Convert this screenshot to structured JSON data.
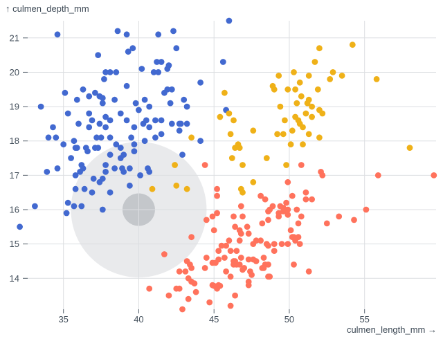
{
  "chart_data": {
    "type": "scatter",
    "title": "",
    "xlabel": "culmen_length_mm →",
    "ylabel": "↑ culmen_depth_mm",
    "x": {
      "ticks": [
        35,
        40,
        45,
        50,
        55
      ],
      "domain": [
        32.1,
        59.6
      ],
      "grid": true
    },
    "y": {
      "ticks": [
        14,
        15,
        16,
        17,
        18,
        19,
        20,
        21
      ],
      "domain": [
        13.1,
        21.5
      ],
      "grid": true
    },
    "legend_position": "none",
    "annotation": {
      "name": "pointer-halo",
      "center_x": 40,
      "center_y": 16,
      "outer_radius_px": 98,
      "inner_radius_px": 23.5,
      "outer_color": "#e9eaec",
      "inner_color": "#c4c7cb"
    },
    "series": [
      {
        "name": "blue",
        "color": "#4269d0",
        "points": [
          [
            34.6,
            21.1
          ],
          [
            38.6,
            21.2
          ],
          [
            39.2,
            21.1
          ],
          [
            46,
            21.5
          ],
          [
            42.3,
            21.2
          ],
          [
            39.3,
            20.6
          ],
          [
            39.6,
            20.7
          ],
          [
            37.3,
            20.5
          ],
          [
            41.3,
            21.1
          ],
          [
            42.5,
            20.7
          ],
          [
            41.2,
            20.3
          ],
          [
            41.5,
            20.3
          ],
          [
            42,
            20.2
          ],
          [
            41.9,
            20.1
          ],
          [
            45.6,
            20.3
          ],
          [
            40.2,
            20.1
          ],
          [
            41,
            20
          ],
          [
            41.3,
            20
          ],
          [
            37.8,
            20
          ],
          [
            38.1,
            20
          ],
          [
            38.5,
            20
          ],
          [
            37.7,
            19.8
          ],
          [
            39.2,
            19.6
          ],
          [
            44.1,
            19.7
          ],
          [
            36.3,
            19.5
          ],
          [
            35.1,
            19.4
          ],
          [
            35.9,
            19.2
          ],
          [
            36.7,
            19.3
          ],
          [
            37.1,
            19.4
          ],
          [
            37.4,
            19.3
          ],
          [
            37.6,
            19.25
          ],
          [
            37.6,
            19.1
          ],
          [
            38.4,
            19.2
          ],
          [
            39.8,
            19.1
          ],
          [
            40.4,
            19.2
          ],
          [
            33.5,
            19
          ],
          [
            40.7,
            19
          ],
          [
            41.9,
            19.5
          ],
          [
            42.2,
            19.5
          ],
          [
            41.7,
            19.4
          ],
          [
            43,
            19.2
          ],
          [
            42.1,
            19.1
          ],
          [
            43.2,
            19
          ],
          [
            35.3,
            18.8
          ],
          [
            36.7,
            18.8
          ],
          [
            37.8,
            18.7
          ],
          [
            38.8,
            18.8
          ],
          [
            39.2,
            18.6
          ],
          [
            40,
            18.9
          ],
          [
            38.1,
            18.6
          ],
          [
            36,
            18.5
          ],
          [
            36.7,
            18.4
          ],
          [
            36.9,
            18.6
          ],
          [
            37.4,
            18.5
          ],
          [
            37.8,
            18.4
          ],
          [
            39.7,
            18.4
          ],
          [
            40.3,
            18.5
          ],
          [
            40.5,
            18.6
          ],
          [
            40.7,
            18.4
          ],
          [
            41.1,
            18.6
          ],
          [
            34.3,
            18.4
          ],
          [
            34,
            18.1
          ],
          [
            34.5,
            18.1
          ],
          [
            37.2,
            18.1
          ],
          [
            37.5,
            18.1
          ],
          [
            38.1,
            18.1
          ],
          [
            39.5,
            18.1
          ],
          [
            40.4,
            18
          ],
          [
            41.1,
            18.1
          ],
          [
            35,
            17.9
          ],
          [
            35.7,
            18
          ],
          [
            35.8,
            17.8
          ],
          [
            35.9,
            17.8
          ],
          [
            36.5,
            17.8
          ],
          [
            36.6,
            17.7
          ],
          [
            37.1,
            17.8
          ],
          [
            37.3,
            17.8
          ],
          [
            39.7,
            17.9
          ],
          [
            39.7,
            17.7
          ],
          [
            38.5,
            17.9
          ],
          [
            38.8,
            17.8
          ],
          [
            39,
            17.6
          ],
          [
            38.1,
            17.6
          ],
          [
            38.8,
            17.5
          ],
          [
            41.5,
            18.6
          ],
          [
            41.5,
            18.2
          ],
          [
            42.2,
            18.5
          ],
          [
            42.7,
            18.5
          ],
          [
            42.8,
            18.5
          ],
          [
            43.2,
            18.5
          ],
          [
            42.7,
            18.3
          ],
          [
            44.1,
            18
          ],
          [
            42.9,
            17.6
          ],
          [
            45.8,
            18.9
          ],
          [
            35.5,
            17.5
          ],
          [
            36.2,
            17.3
          ],
          [
            36.3,
            17.2
          ],
          [
            36.1,
            17.1
          ],
          [
            35.8,
            17
          ],
          [
            34.6,
            17.2
          ],
          [
            33.9,
            17.1
          ],
          [
            37.8,
            17.3
          ],
          [
            37.8,
            17.1
          ],
          [
            38.4,
            17.2
          ],
          [
            38.9,
            17.2
          ],
          [
            39,
            17.1
          ],
          [
            39.4,
            17.2
          ],
          [
            40.1,
            17
          ],
          [
            40.6,
            17.2
          ],
          [
            40.7,
            17.1
          ],
          [
            37,
            16.9
          ],
          [
            37.4,
            16.8
          ],
          [
            37.6,
            16.9
          ],
          [
            35.8,
            16.6
          ],
          [
            36.4,
            16.6
          ],
          [
            36.9,
            16.5
          ],
          [
            38.1,
            16.5
          ],
          [
            39.4,
            16.7
          ],
          [
            33.1,
            16.1
          ],
          [
            35.3,
            16.2
          ],
          [
            35.7,
            16.1
          ],
          [
            36.2,
            16.1
          ],
          [
            37.6,
            16
          ],
          [
            35.2,
            15.9
          ],
          [
            32.1,
            15.5
          ]
        ]
      },
      {
        "name": "orange",
        "color": "#efb118",
        "points": [
          [
            50.3,
            20
          ],
          [
            49.3,
            19.9
          ],
          [
            48.9,
            19.6
          ],
          [
            49,
            19.5
          ],
          [
            49.9,
            19.5
          ],
          [
            50.4,
            19.5
          ],
          [
            45.7,
            19.4
          ],
          [
            49.4,
            19
          ],
          [
            50.5,
            19.1
          ],
          [
            54.2,
            20.8
          ],
          [
            52,
            20.7
          ],
          [
            51.7,
            20.3
          ],
          [
            52.9,
            20
          ],
          [
            51.3,
            19.9
          ],
          [
            52.7,
            19.8
          ],
          [
            53.5,
            19.9
          ],
          [
            55.8,
            19.8
          ],
          [
            50.7,
            19.7
          ],
          [
            51.9,
            19.5
          ],
          [
            50.8,
            19.3
          ],
          [
            51.3,
            19.2
          ],
          [
            51.2,
            19.1
          ],
          [
            51.5,
            19
          ],
          [
            52,
            18.9
          ],
          [
            43.5,
            18.1
          ],
          [
            42.4,
            17.3
          ],
          [
            42.5,
            16.7
          ],
          [
            43.2,
            16.6
          ],
          [
            46,
            18.8
          ],
          [
            45.4,
            18.7
          ],
          [
            46.3,
            18.6
          ],
          [
            46.1,
            18.2
          ],
          [
            46.2,
            17.5
          ],
          [
            46.6,
            17.9
          ],
          [
            46.4,
            17.8
          ],
          [
            46.7,
            17.8
          ],
          [
            46.9,
            17.3
          ],
          [
            47.6,
            18.3
          ],
          [
            47.6,
            16.8
          ],
          [
            46.8,
            16.6
          ],
          [
            46.9,
            16.5
          ],
          [
            48.5,
            17.5
          ],
          [
            49.7,
            18.6
          ],
          [
            49.2,
            18.2
          ],
          [
            49.6,
            18.2
          ],
          [
            50.2,
            18.3
          ],
          [
            50.4,
            18.7
          ],
          [
            50.1,
            17.9
          ],
          [
            49.8,
            17.3
          ],
          [
            40.9,
            16.6
          ],
          [
            51.1,
            18.8
          ],
          [
            51.5,
            18.7
          ],
          [
            52.2,
            18.8
          ],
          [
            50.6,
            18.6
          ],
          [
            50.7,
            18.5
          ],
          [
            50.9,
            18.4
          ],
          [
            51.3,
            18.2
          ],
          [
            52,
            18.1
          ],
          [
            50.9,
            17.9
          ],
          [
            58,
            17.8
          ]
        ]
      },
      {
        "name": "red",
        "color": "#ff725c",
        "points": [
          [
            44.4,
            17.3
          ],
          [
            48.1,
            16.4
          ],
          [
            48.4,
            16.3
          ],
          [
            49.9,
            16.8
          ],
          [
            49.4,
            16.1
          ],
          [
            49.6,
            16.05
          ],
          [
            49.8,
            16.2
          ],
          [
            49.9,
            16
          ],
          [
            49.6,
            15.95
          ],
          [
            48.9,
            16.1
          ],
          [
            48.7,
            16
          ],
          [
            48.6,
            15.95
          ],
          [
            49.3,
            15.9
          ],
          [
            49.9,
            15.85
          ],
          [
            46.8,
            16.1
          ],
          [
            45.2,
            16.6
          ],
          [
            45.2,
            16.4
          ],
          [
            45.2,
            15.9
          ],
          [
            50.2,
            16.4
          ],
          [
            50.8,
            17.3
          ],
          [
            52.1,
            17.1
          ],
          [
            52.2,
            17
          ],
          [
            55.9,
            17
          ],
          [
            59.6,
            17
          ],
          [
            51.1,
            16.5
          ],
          [
            51.1,
            16.3
          ],
          [
            51.5,
            16.3
          ],
          [
            55.1,
            16
          ],
          [
            50.5,
            16
          ],
          [
            44.5,
            15.7
          ],
          [
            44.9,
            15.8
          ],
          [
            46.3,
            15.8
          ],
          [
            46.9,
            15.8
          ],
          [
            48.2,
            15.6
          ],
          [
            48.6,
            15.7
          ],
          [
            49.3,
            15.8
          ],
          [
            46.4,
            15.5
          ],
          [
            47.2,
            15.5
          ],
          [
            45,
            15.4
          ],
          [
            46.7,
            15.4
          ],
          [
            46.8,
            15.3
          ],
          [
            47.3,
            15.3
          ],
          [
            50.1,
            15.4
          ],
          [
            50.2,
            15.2
          ],
          [
            43.5,
            15.2
          ],
          [
            46,
            15.1
          ],
          [
            46.7,
            15.1
          ],
          [
            47.6,
            15
          ],
          [
            47.8,
            15.1
          ],
          [
            48.1,
            15.1
          ],
          [
            48.5,
            15
          ],
          [
            48.6,
            14.95
          ],
          [
            49,
            15
          ],
          [
            49.5,
            15
          ],
          [
            49.9,
            15
          ],
          [
            50.3,
            15.2
          ],
          [
            50.4,
            15.1
          ],
          [
            45.5,
            14.95
          ],
          [
            45.8,
            14.95
          ],
          [
            46.1,
            14.8
          ],
          [
            46.5,
            14.8
          ],
          [
            45.3,
            14.8
          ],
          [
            49,
            14.8
          ],
          [
            41.7,
            14.7
          ],
          [
            44.5,
            14.6
          ],
          [
            45.1,
            14.45
          ],
          [
            44.9,
            14.45
          ],
          [
            45.3,
            14.55
          ],
          [
            45.7,
            14.6
          ],
          [
            46.8,
            14.6
          ],
          [
            47.3,
            14.55
          ],
          [
            47.6,
            14.55
          ],
          [
            47.8,
            14.5
          ],
          [
            48.3,
            14.6
          ],
          [
            46.3,
            14.5
          ],
          [
            46.4,
            14.5
          ],
          [
            46.3,
            14.4
          ],
          [
            46.5,
            14.4
          ],
          [
            46.7,
            14.4
          ],
          [
            48.4,
            14.4
          ],
          [
            48.6,
            14.4
          ],
          [
            43.2,
            14.5
          ],
          [
            43.4,
            14.4
          ],
          [
            42.7,
            14.2
          ],
          [
            43.1,
            14.2
          ],
          [
            43.5,
            14.3
          ],
          [
            44.4,
            14.3
          ],
          [
            45.8,
            14.2
          ],
          [
            46.1,
            14.05
          ],
          [
            46.9,
            14.25
          ],
          [
            47,
            14.3
          ],
          [
            47.4,
            14.2
          ],
          [
            47.5,
            14.1
          ],
          [
            48.2,
            14.3
          ],
          [
            48.3,
            14.3
          ],
          [
            48.6,
            14.05
          ],
          [
            48.7,
            14.05
          ],
          [
            50.3,
            14.4
          ],
          [
            43.3,
            14
          ],
          [
            43.5,
            13.9
          ],
          [
            43.7,
            13.85
          ],
          [
            42.5,
            13.7
          ],
          [
            42.7,
            13.7
          ],
          [
            43.8,
            13.6
          ],
          [
            44.9,
            13.8
          ],
          [
            45,
            13.78
          ],
          [
            45.3,
            13.8
          ],
          [
            45.4,
            13.78
          ],
          [
            45.2,
            13.7
          ],
          [
            46.4,
            13.5
          ],
          [
            47.3,
            13.9
          ],
          [
            47.3,
            13.8
          ],
          [
            42,
            13.5
          ],
          [
            43.3,
            13.4
          ],
          [
            44.7,
            13.3
          ],
          [
            46.1,
            13.2
          ],
          [
            42.9,
            13.1
          ],
          [
            40.7,
            13.7
          ],
          [
            50.8,
            15.8
          ],
          [
            50.6,
            15.6
          ],
          [
            52.5,
            15.6
          ],
          [
            53.3,
            15.8
          ],
          [
            54.3,
            15.7
          ],
          [
            50.6,
            15.2
          ],
          [
            50.7,
            15
          ],
          [
            51.3,
            14.2
          ]
        ]
      }
    ]
  },
  "styles": {
    "background": "#ffffff",
    "grid_color": "#dcdee1",
    "tick_mark_color": "#55606c",
    "text_color": "#3e4a56"
  }
}
